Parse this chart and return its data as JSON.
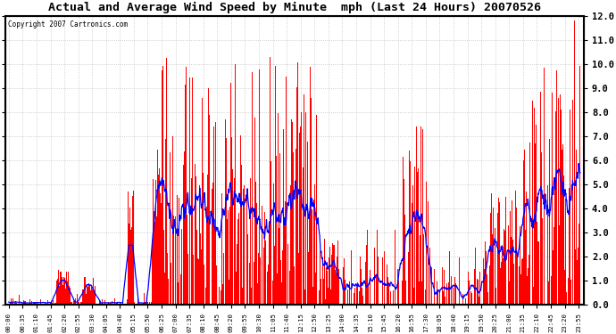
{
  "title": "Actual and Average Wind Speed by Minute  mph (Last 24 Hours) 20070526",
  "copyright_text": "Copyright 2007 Cartronics.com",
  "ylim": [
    0.0,
    12.0
  ],
  "yticks": [
    0.0,
    1.0,
    2.0,
    3.0,
    4.0,
    5.0,
    6.0,
    7.0,
    8.0,
    9.0,
    10.0,
    11.0,
    12.0
  ],
  "background_color": "#ffffff",
  "bar_color": "#ff0000",
  "line_color": "#0000ff",
  "grid_color": "#bbbbbb",
  "num_minutes": 1440,
  "figsize": [
    6.9,
    3.75
  ],
  "dpi": 100,
  "seed": 12345
}
